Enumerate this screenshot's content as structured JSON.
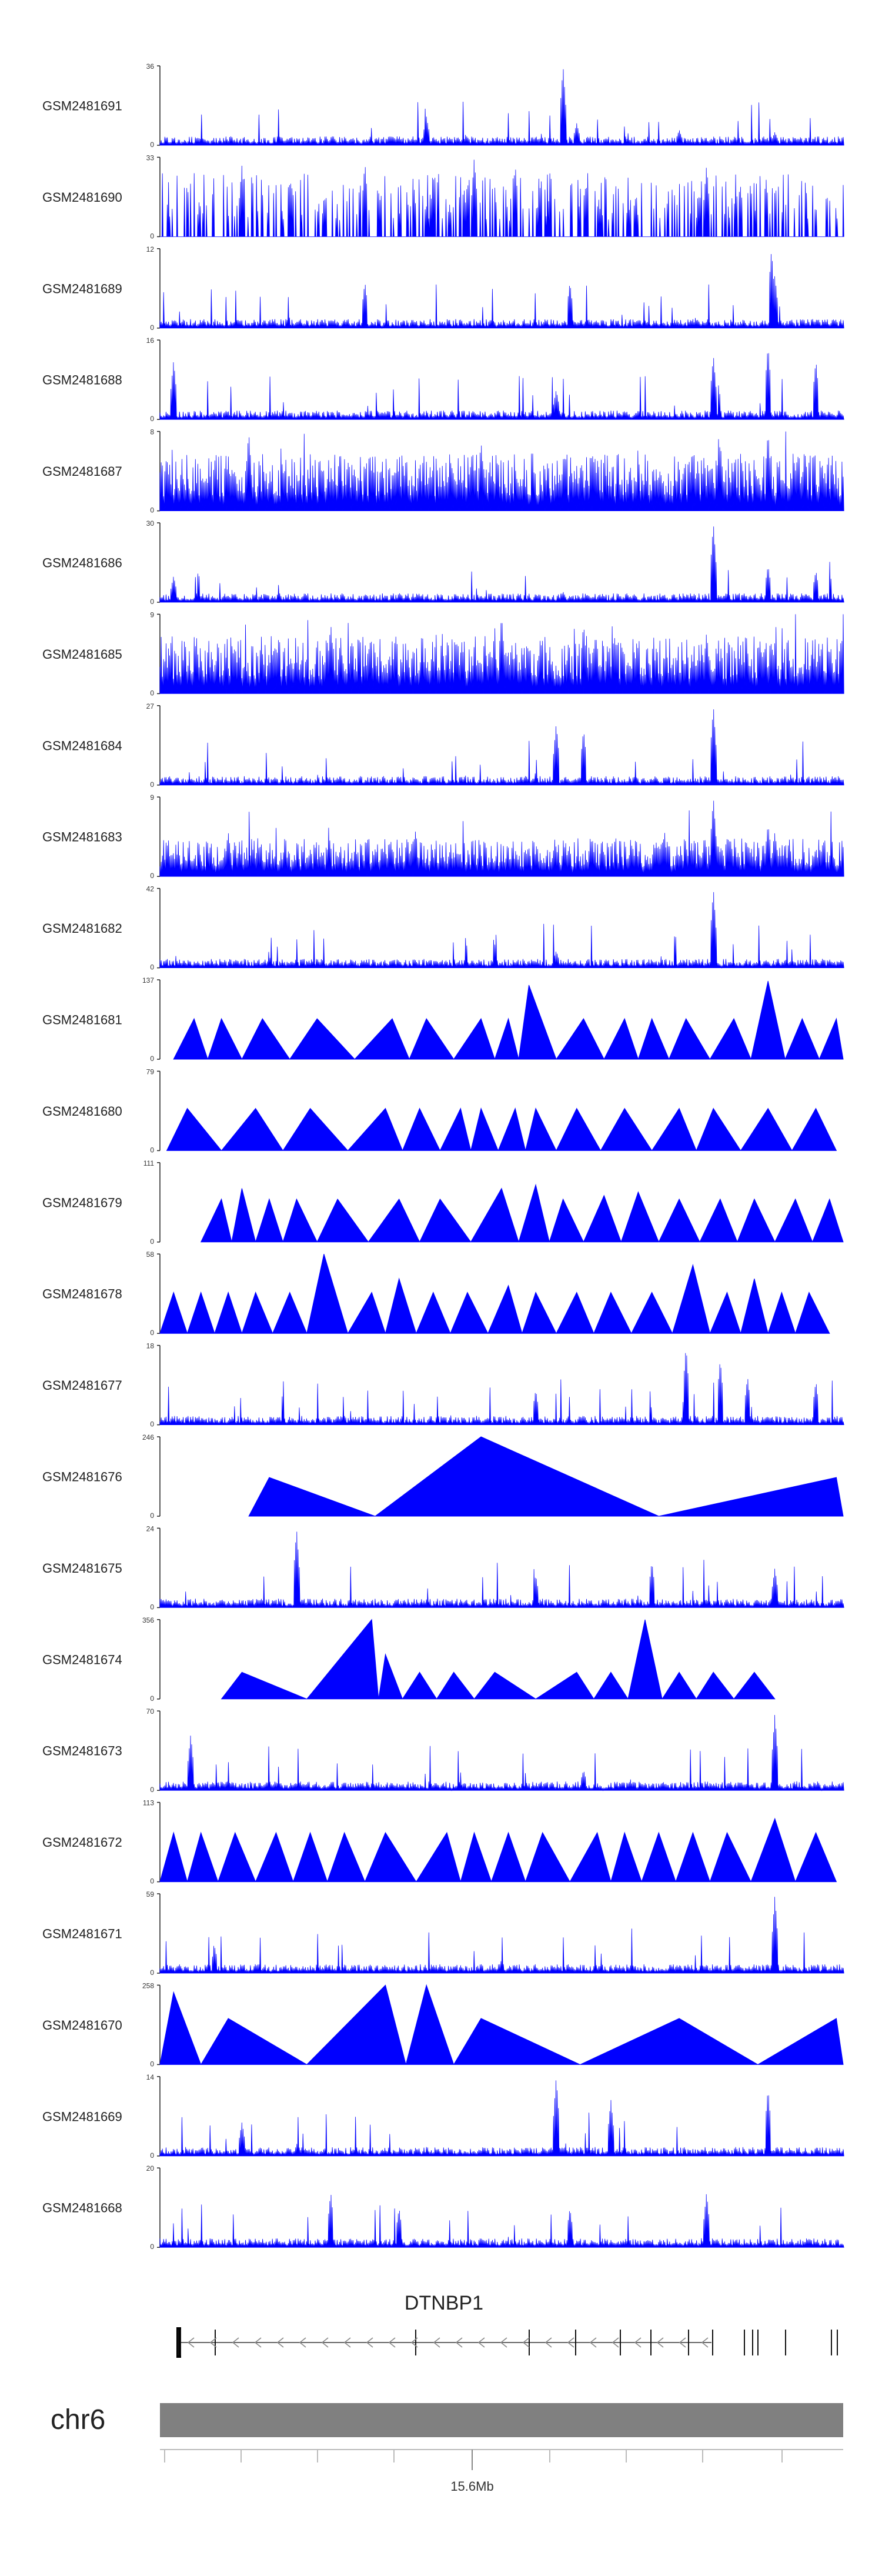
{
  "chart_data": {
    "type": "area",
    "title": "",
    "track_color": "#0000ff",
    "tracks": [
      {
        "name": "GSM2481691",
        "ymax": 36,
        "peaks": [
          [
            0.59,
            36
          ],
          [
            0.61,
            10
          ],
          [
            0.39,
            13
          ],
          [
            0.76,
            7
          ],
          [
            0.9,
            6
          ]
        ],
        "kind": "dense"
      },
      {
        "name": "GSM2481690",
        "ymax": 33,
        "peaks": [
          [
            0.46,
            33
          ],
          [
            0.12,
            30
          ],
          [
            0.3,
            31
          ],
          [
            0.52,
            30
          ],
          [
            0.8,
            30
          ]
        ],
        "kind": "sparse"
      },
      {
        "name": "GSM2481689",
        "ymax": 12,
        "peaks": [
          [
            0.895,
            12
          ],
          [
            0.9,
            8
          ],
          [
            0.3,
            7
          ],
          [
            0.6,
            7
          ]
        ],
        "kind": "dense"
      },
      {
        "name": "GSM2481688",
        "ymax": 16,
        "peaks": [
          [
            0.02,
            12
          ],
          [
            0.81,
            13
          ],
          [
            0.89,
            15
          ],
          [
            0.96,
            12
          ],
          [
            0.58,
            6
          ]
        ],
        "kind": "dense"
      },
      {
        "name": "GSM2481687",
        "ymax": 8,
        "peaks": [
          [
            0.13,
            8
          ],
          [
            0.47,
            7
          ],
          [
            0.82,
            7
          ],
          [
            0.89,
            8
          ]
        ],
        "kind": "high"
      },
      {
        "name": "GSM2481686",
        "ymax": 30,
        "peaks": [
          [
            0.81,
            30
          ],
          [
            0.89,
            14
          ],
          [
            0.96,
            12
          ],
          [
            0.02,
            10
          ],
          [
            0.59,
            4
          ]
        ],
        "kind": "dense"
      },
      {
        "name": "GSM2481685",
        "ymax": 9,
        "peaks": [
          [
            0.25,
            8
          ],
          [
            0.5,
            9
          ],
          [
            0.62,
            8
          ],
          [
            0.8,
            7
          ]
        ],
        "kind": "high"
      },
      {
        "name": "GSM2481684",
        "ymax": 27,
        "peaks": [
          [
            0.58,
            21
          ],
          [
            0.62,
            19
          ],
          [
            0.81,
            27
          ]
        ],
        "kind": "dense"
      },
      {
        "name": "GSM2481683",
        "ymax": 9,
        "peaks": [
          [
            0.81,
            9
          ],
          [
            0.89,
            6
          ],
          [
            0.1,
            5
          ],
          [
            0.9,
            5
          ]
        ],
        "kind": "mid"
      },
      {
        "name": "GSM2481682",
        "ymax": 42,
        "peaks": [
          [
            0.81,
            42
          ],
          [
            0.58,
            9
          ],
          [
            0.97,
            5
          ]
        ],
        "kind": "dense"
      },
      {
        "name": "GSM2481681",
        "ymax": 137,
        "peaks": [
          [
            0.05,
            70
          ],
          [
            0.09,
            70
          ],
          [
            0.15,
            70
          ],
          [
            0.23,
            70
          ],
          [
            0.34,
            70
          ],
          [
            0.39,
            70
          ],
          [
            0.47,
            70
          ],
          [
            0.51,
            70
          ],
          [
            0.54,
            128
          ],
          [
            0.62,
            70
          ],
          [
            0.68,
            70
          ],
          [
            0.72,
            70
          ],
          [
            0.77,
            70
          ],
          [
            0.84,
            70
          ],
          [
            0.89,
            135
          ],
          [
            0.94,
            70
          ],
          [
            0.99,
            70
          ]
        ],
        "kind": "tri"
      },
      {
        "name": "GSM2481680",
        "ymax": 79,
        "peaks": [
          [
            0.04,
            42
          ],
          [
            0.14,
            42
          ],
          [
            0.22,
            42
          ],
          [
            0.33,
            42
          ],
          [
            0.38,
            42
          ],
          [
            0.44,
            42
          ],
          [
            0.47,
            42
          ],
          [
            0.52,
            42
          ],
          [
            0.55,
            42
          ],
          [
            0.61,
            42
          ],
          [
            0.68,
            42
          ],
          [
            0.76,
            42
          ],
          [
            0.81,
            42
          ],
          [
            0.89,
            42
          ],
          [
            0.96,
            42
          ]
        ],
        "kind": "tri"
      },
      {
        "name": "GSM2481679",
        "ymax": 111,
        "peaks": [
          [
            0.09,
            60
          ],
          [
            0.12,
            75
          ],
          [
            0.16,
            60
          ],
          [
            0.2,
            60
          ],
          [
            0.26,
            60
          ],
          [
            0.35,
            60
          ],
          [
            0.41,
            60
          ],
          [
            0.5,
            75
          ],
          [
            0.55,
            80
          ],
          [
            0.59,
            60
          ],
          [
            0.65,
            65
          ],
          [
            0.7,
            70
          ],
          [
            0.76,
            60
          ],
          [
            0.82,
            60
          ],
          [
            0.87,
            60
          ],
          [
            0.93,
            60
          ],
          [
            0.98,
            60
          ]
        ],
        "kind": "tri"
      },
      {
        "name": "GSM2481678",
        "ymax": 58,
        "peaks": [
          [
            0.02,
            30
          ],
          [
            0.06,
            30
          ],
          [
            0.1,
            30
          ],
          [
            0.14,
            30
          ],
          [
            0.19,
            30
          ],
          [
            0.24,
            58
          ],
          [
            0.31,
            30
          ],
          [
            0.35,
            40
          ],
          [
            0.4,
            30
          ],
          [
            0.45,
            30
          ],
          [
            0.51,
            35
          ],
          [
            0.55,
            30
          ],
          [
            0.61,
            30
          ],
          [
            0.66,
            30
          ],
          [
            0.72,
            30
          ],
          [
            0.78,
            50
          ],
          [
            0.83,
            30
          ],
          [
            0.87,
            40
          ],
          [
            0.91,
            30
          ],
          [
            0.95,
            30
          ]
        ],
        "kind": "tri"
      },
      {
        "name": "GSM2481677",
        "ymax": 18,
        "peaks": [
          [
            0.77,
            18
          ],
          [
            0.82,
            15
          ],
          [
            0.86,
            11
          ],
          [
            0.96,
            10
          ],
          [
            0.55,
            8
          ]
        ],
        "kind": "dense"
      },
      {
        "name": "GSM2481676",
        "ymax": 246,
        "peaks": [
          [
            0.16,
            120
          ],
          [
            0.47,
            246
          ],
          [
            0.99,
            120
          ]
        ],
        "kind": "tri"
      },
      {
        "name": "GSM2481675",
        "ymax": 24,
        "peaks": [
          [
            0.2,
            24
          ],
          [
            0.72,
            14
          ],
          [
            0.55,
            10
          ],
          [
            0.9,
            12
          ]
        ],
        "kind": "dense"
      },
      {
        "name": "GSM2481674",
        "ymax": 356,
        "peaks": [
          [
            0.12,
            120
          ],
          [
            0.31,
            356
          ],
          [
            0.33,
            200
          ],
          [
            0.38,
            120
          ],
          [
            0.43,
            120
          ],
          [
            0.49,
            120
          ],
          [
            0.61,
            120
          ],
          [
            0.66,
            120
          ],
          [
            0.71,
            356
          ],
          [
            0.76,
            120
          ],
          [
            0.81,
            120
          ],
          [
            0.87,
            120
          ]
        ],
        "kind": "tri"
      },
      {
        "name": "GSM2481673",
        "ymax": 70,
        "peaks": [
          [
            0.045,
            50
          ],
          [
            0.9,
            68
          ],
          [
            0.62,
            18
          ]
        ],
        "kind": "dense"
      },
      {
        "name": "GSM2481672",
        "ymax": 113,
        "peaks": [
          [
            0.02,
            70
          ],
          [
            0.06,
            70
          ],
          [
            0.11,
            70
          ],
          [
            0.17,
            70
          ],
          [
            0.22,
            70
          ],
          [
            0.27,
            70
          ],
          [
            0.33,
            70
          ],
          [
            0.42,
            70
          ],
          [
            0.46,
            70
          ],
          [
            0.51,
            70
          ],
          [
            0.56,
            70
          ],
          [
            0.64,
            70
          ],
          [
            0.68,
            70
          ],
          [
            0.73,
            70
          ],
          [
            0.78,
            70
          ],
          [
            0.83,
            70
          ],
          [
            0.9,
            90
          ],
          [
            0.96,
            70
          ]
        ],
        "kind": "tri"
      },
      {
        "name": "GSM2481671",
        "ymax": 59,
        "peaks": [
          [
            0.9,
            58
          ],
          [
            0.08,
            20
          ],
          [
            0.5,
            10
          ]
        ],
        "kind": "dense"
      },
      {
        "name": "GSM2481670",
        "ymax": 258,
        "peaks": [
          [
            0.02,
            235
          ],
          [
            0.1,
            150
          ],
          [
            0.33,
            258
          ],
          [
            0.39,
            258
          ],
          [
            0.47,
            150
          ],
          [
            0.76,
            150
          ],
          [
            0.99,
            150
          ]
        ],
        "kind": "tri"
      },
      {
        "name": "GSM2481669",
        "ymax": 14,
        "peaks": [
          [
            0.58,
            14
          ],
          [
            0.66,
            10
          ],
          [
            0.89,
            12
          ],
          [
            0.12,
            6
          ]
        ],
        "kind": "dense"
      },
      {
        "name": "GSM2481668",
        "ymax": 20,
        "peaks": [
          [
            0.25,
            14
          ],
          [
            0.8,
            14
          ],
          [
            0.35,
            10
          ],
          [
            0.6,
            10
          ]
        ],
        "kind": "dense"
      }
    ],
    "gene": {
      "name": "DTNBP1",
      "strand": "-"
    },
    "chromosome": "chr6",
    "xtick_label": "15.6Mb"
  }
}
